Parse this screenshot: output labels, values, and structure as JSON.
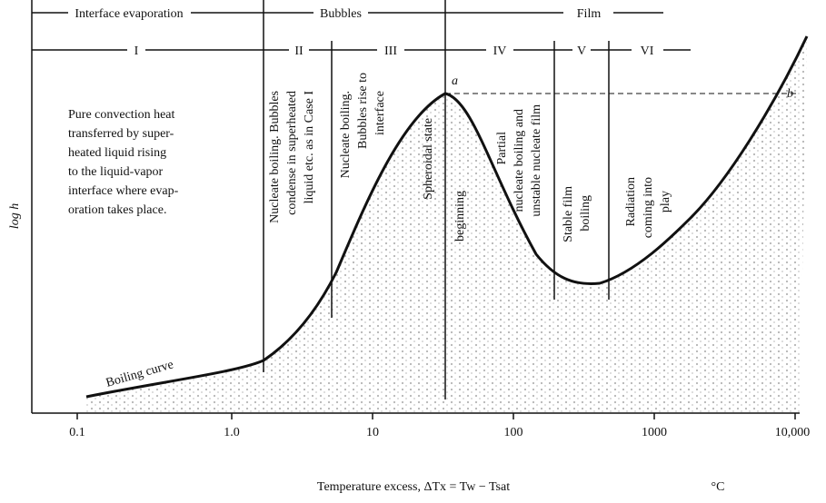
{
  "header": {
    "spans": [
      "Interface evaporation",
      "Bubbles",
      "Film"
    ],
    "regions": [
      "I",
      "II",
      "III",
      "IV",
      "V",
      "VI"
    ]
  },
  "note": [
    "Pure convection heat",
    "transferred by super-",
    "heated liquid rising",
    "to the liquid-vapor",
    "interface where evap-",
    "oration takes place."
  ],
  "curve_label": "Boiling curve",
  "region_labels": {
    "II": [
      "Nucleate boiling. Bubbles",
      "condense in superheated",
      "liquid etc. as in Case I"
    ],
    "III": [
      "Nucleate boiling.",
      "Bubbles rise to",
      "interface"
    ],
    "spheroidal": "Spheroidal state",
    "beginning": "beginning",
    "IV": [
      "Partial",
      "nucleate boiling and",
      "unstable nucleate film"
    ],
    "V": [
      "Stable film",
      "boiling"
    ],
    "VI": [
      "Radiation",
      "coming into",
      "play"
    ]
  },
  "points": {
    "a": "a",
    "b": "b"
  },
  "axis": {
    "y_label": "log h",
    "x_ticks": [
      "0.1",
      "1.0",
      "10",
      "100",
      "1000",
      "10,000"
    ],
    "x_label": "Temperature excess, ΔTx = Tw − Tsat",
    "unit": "°C"
  }
}
